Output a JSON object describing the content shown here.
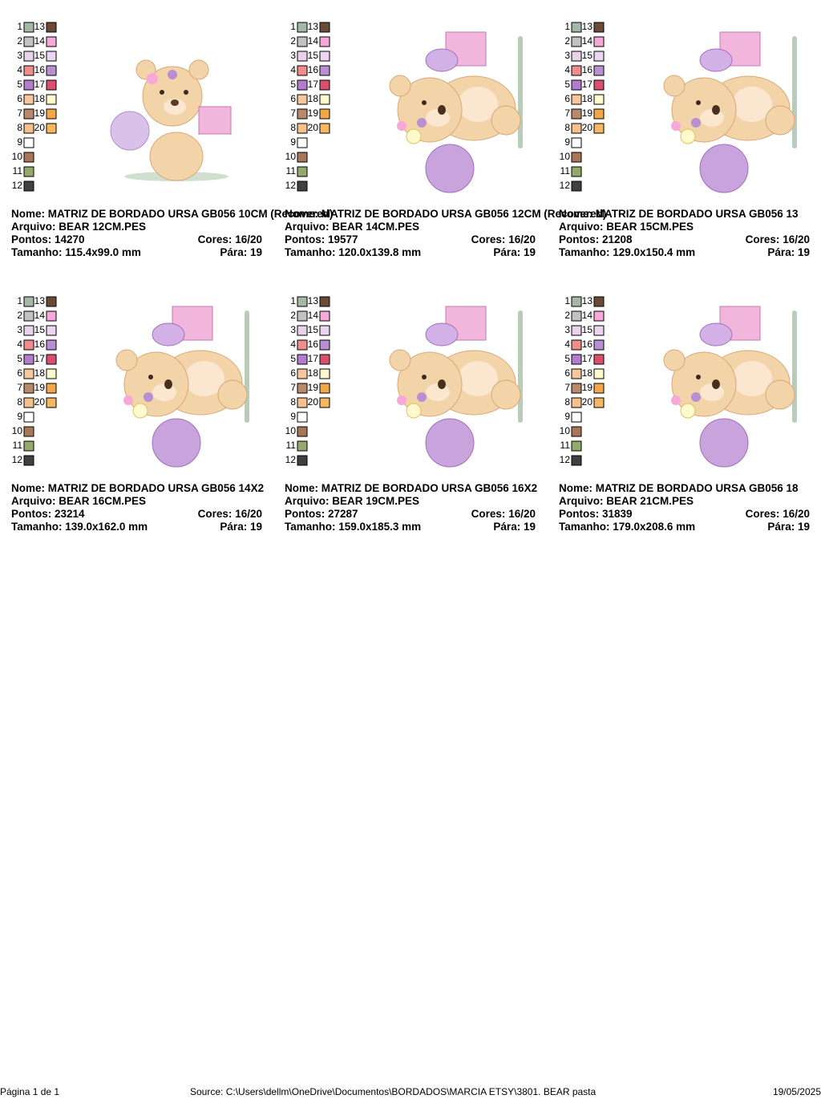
{
  "labels": {
    "name": "Nome:",
    "file": "Arquivo:",
    "stitches": "Pontos:",
    "colors": "Cores:",
    "size": "Tamanho:",
    "stops": "Pára:"
  },
  "palette": [
    {
      "n": 1,
      "color": "#a3b8a5"
    },
    {
      "n": 2,
      "color": "#c2c2c2"
    },
    {
      "n": 3,
      "color": "#e8d3ea"
    },
    {
      "n": 4,
      "color": "#f08c8c"
    },
    {
      "n": 5,
      "color": "#b47ccc"
    },
    {
      "n": 6,
      "color": "#f7c79c"
    },
    {
      "n": 7,
      "color": "#b8896a"
    },
    {
      "n": 8,
      "color": "#f5c08c"
    },
    {
      "n": 9,
      "color": "#ffffff"
    },
    {
      "n": 10,
      "color": "#a8775a"
    },
    {
      "n": 11,
      "color": "#94aa6c"
    },
    {
      "n": 12,
      "color": "#404040"
    },
    {
      "n": 13,
      "color": "#6b4a36"
    },
    {
      "n": 14,
      "color": "#f7a8d8"
    },
    {
      "n": 15,
      "color": "#ecd5f0"
    },
    {
      "n": 16,
      "color": "#b98fd2"
    },
    {
      "n": 17,
      "color": "#d9506e"
    },
    {
      "n": 18,
      "color": "#fffacd"
    },
    {
      "n": 19,
      "color": "#f2a84a"
    },
    {
      "n": 20,
      "color": "#f5b860"
    }
  ],
  "cards": [
    {
      "name": "MATRIZ DE BORDADO URSA GB056 10CM (Recovered)",
      "file": "BEAR 12CM.PES",
      "stitches": "14270",
      "colors": "16/20",
      "size": "115.4x99.0 mm",
      "stops": "19"
    },
    {
      "name": "MATRIZ DE BORDADO URSA GB056 12CM (Recovered)",
      "file": "BEAR 14CM.PES",
      "stitches": "19577",
      "colors": "16/20",
      "size": "120.0x139.8 mm",
      "stops": "19"
    },
    {
      "name": "MATRIZ DE BORDADO URSA GB056 13",
      "file": "BEAR 15CM.PES",
      "stitches": "21208",
      "colors": "16/20",
      "size": "129.0x150.4 mm",
      "stops": "19"
    },
    {
      "name": "MATRIZ DE BORDADO URSA GB056 14X2",
      "file": "BEAR 16CM.PES",
      "stitches": "23214",
      "colors": "16/20",
      "size": "139.0x162.0 mm",
      "stops": "19"
    },
    {
      "name": "MATRIZ DE BORDADO URSA GB056 16X2",
      "file": "BEAR 19CM.PES",
      "stitches": "27287",
      "colors": "16/20",
      "size": "159.0x185.3 mm",
      "stops": "19"
    },
    {
      "name": "MATRIZ DE BORDADO URSA GB056 18",
      "file": "BEAR 21CM.PES",
      "stitches": "31839",
      "colors": "16/20",
      "size": "179.0x208.6 mm",
      "stops": "19"
    }
  ],
  "footer": {
    "page": "Página 1 de 1",
    "source": "Source: C:\\Users\\dellm\\OneDrive\\Documentos\\BORDADOS\\MARCIA ETSY\\3801. BEAR pasta",
    "date": "19/05/2025"
  }
}
